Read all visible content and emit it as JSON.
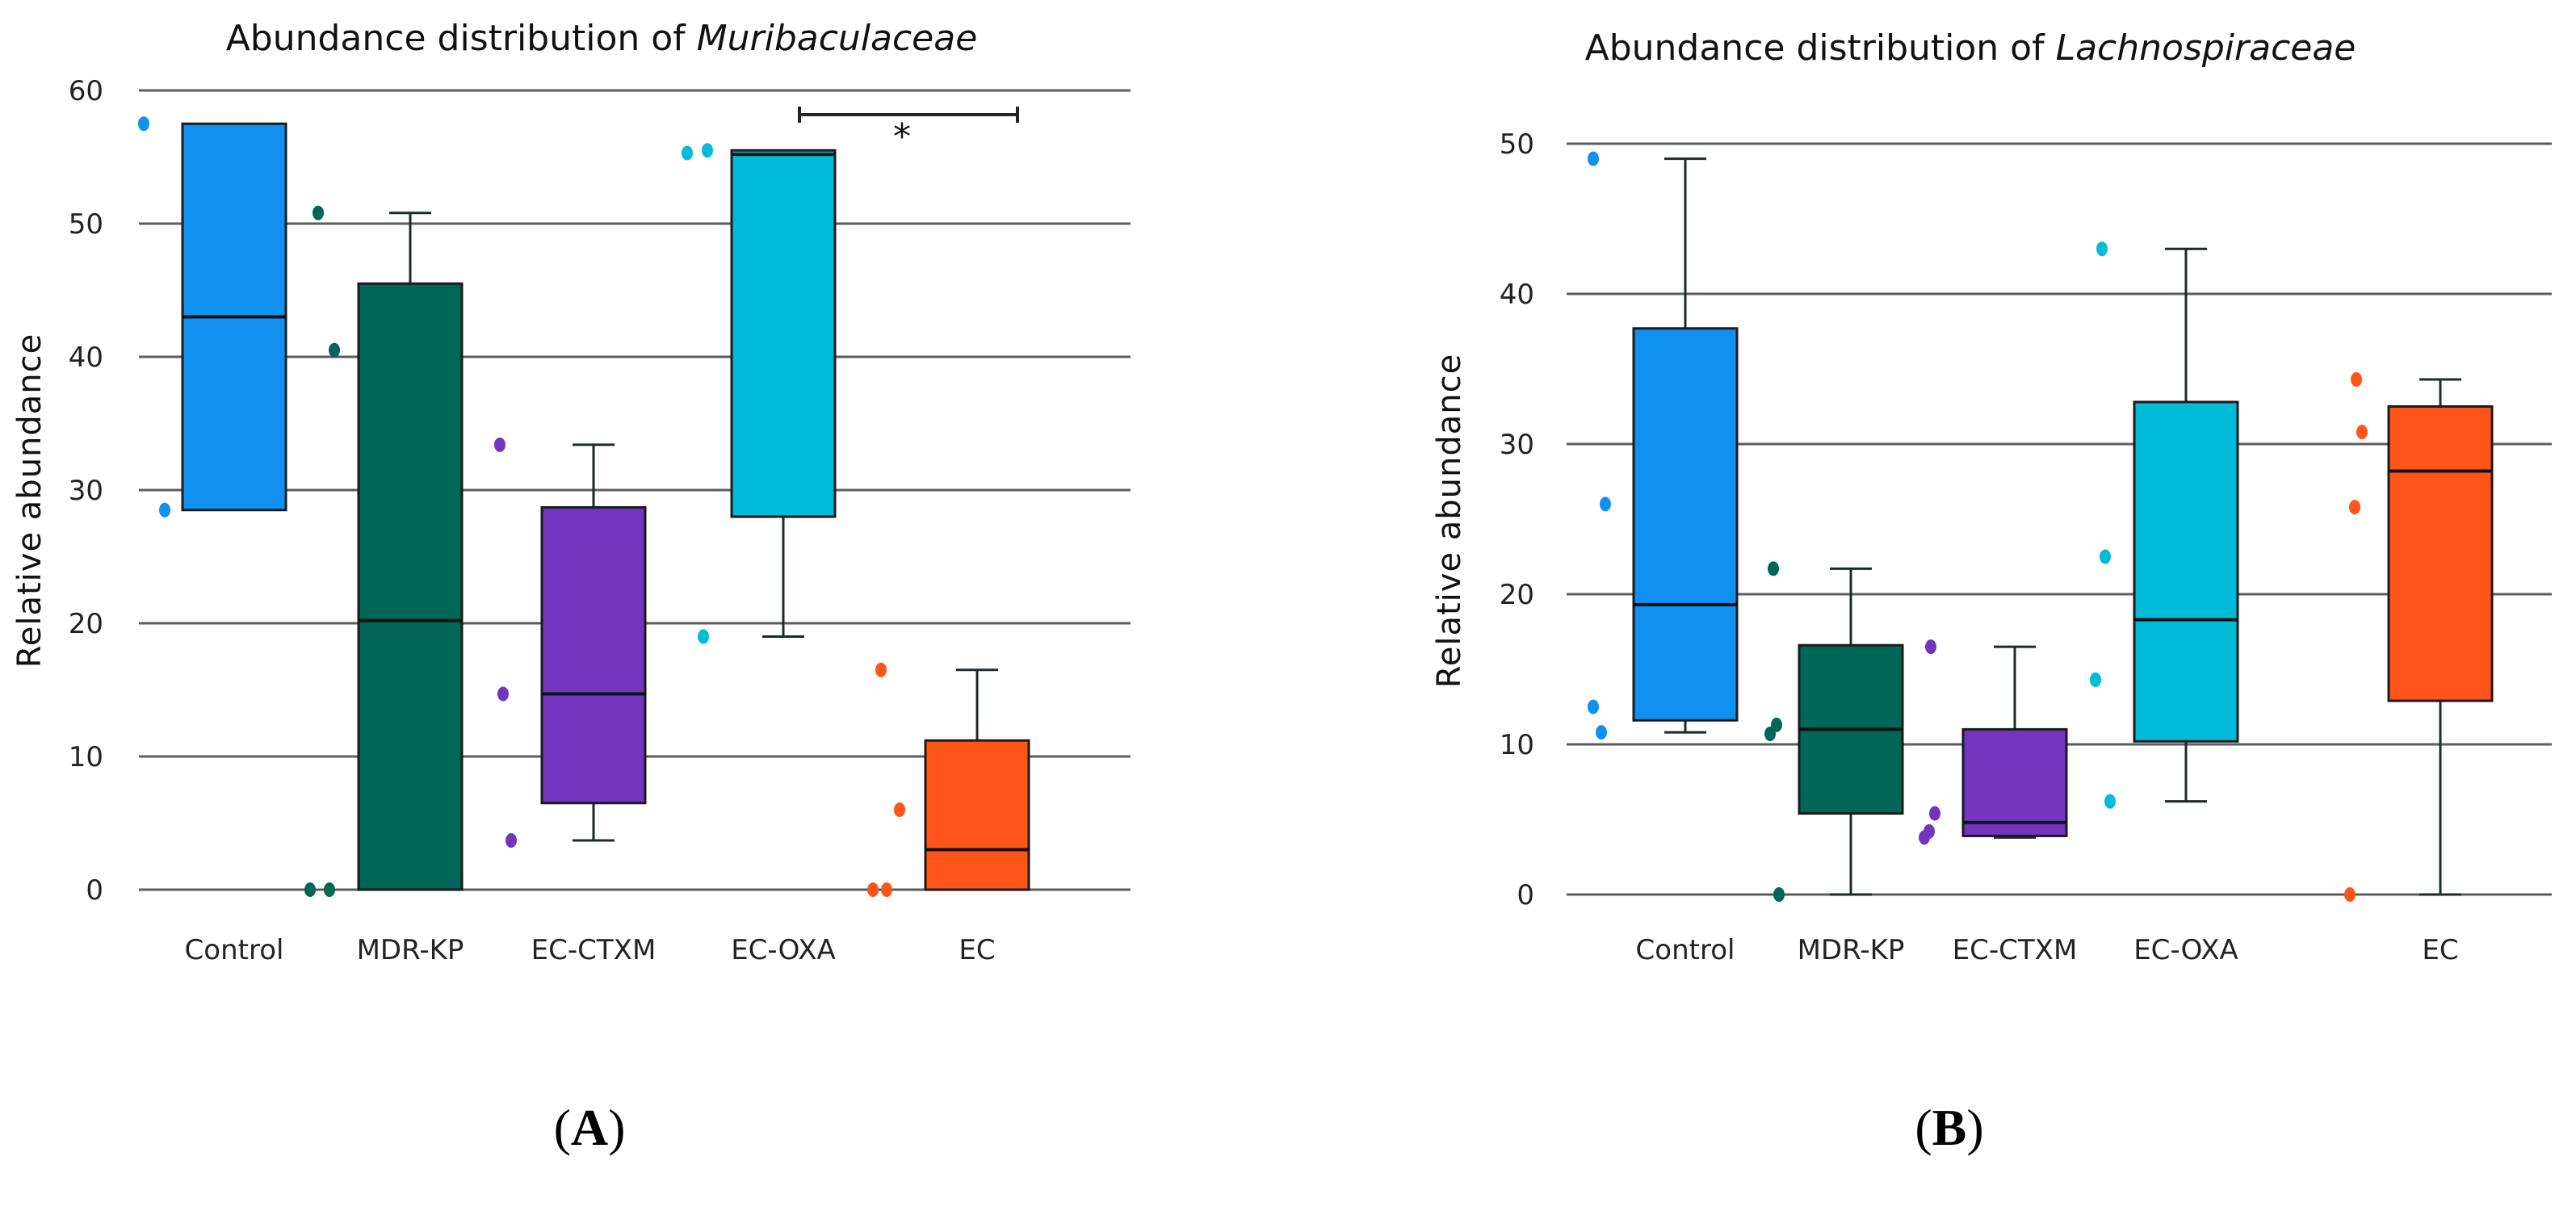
{
  "chart_data": [
    {
      "panel": "A",
      "type": "box",
      "title_prefix": "Abundance distribution of ",
      "title_taxon": "Muribaculaceae",
      "ylabel": "Relative abundance",
      "ylim": [
        0,
        60
      ],
      "yticks": [
        0,
        10,
        20,
        30,
        40,
        50,
        60
      ],
      "grid": true,
      "categories": [
        "Control",
        "MDR-KP",
        "EC-CTXM",
        "EC-OXA",
        "EC"
      ],
      "colors": [
        "#1090f0",
        "#006655",
        "#7335c0",
        "#00bcd8",
        "#ff5518"
      ],
      "boxes": [
        {
          "q1": 28.5,
          "median": 43,
          "q3": 57.5,
          "whisker_low": 28.5,
          "whisker_high": 57.5,
          "points": [
            57.5,
            28.5
          ]
        },
        {
          "q1": 0,
          "median": 20.2,
          "q3": 45.5,
          "whisker_low": 0,
          "whisker_high": 50.8,
          "points": [
            50.8,
            40.5,
            0,
            0
          ]
        },
        {
          "q1": 6.5,
          "median": 14.7,
          "q3": 28.7,
          "whisker_low": 3.7,
          "whisker_high": 33.4,
          "points": [
            33.4,
            14.7,
            3.7
          ]
        },
        {
          "q1": 28,
          "median": 55.2,
          "q3": 55.5,
          "whisker_low": 19,
          "whisker_high": 55.5,
          "points": [
            55.3,
            55.5,
            19
          ]
        },
        {
          "q1": 0,
          "median": 3,
          "q3": 11.2,
          "whisker_low": 0,
          "whisker_high": 16.5,
          "points": [
            16.5,
            6,
            0,
            0
          ]
        }
      ],
      "significance": {
        "from": "EC-OXA",
        "to": "EC",
        "label": "*"
      }
    },
    {
      "panel": "B",
      "type": "box",
      "title_prefix": "Abundance distribution of ",
      "title_taxon": "Lachnospiraceae",
      "ylabel": "Relative abundance",
      "ylim": [
        0,
        50
      ],
      "yticks": [
        0,
        10,
        20,
        30,
        40,
        50
      ],
      "grid": true,
      "categories": [
        "Control",
        "MDR-KP",
        "EC-CTXM",
        "EC-OXA",
        "EC"
      ],
      "colors": [
        "#1090f0",
        "#006655",
        "#7335c0",
        "#00bcd8",
        "#ff5518"
      ],
      "boxes": [
        {
          "q1": 11.6,
          "median": 19.3,
          "q3": 37.7,
          "whisker_low": 10.8,
          "whisker_high": 49,
          "points": [
            49,
            26,
            12.5,
            10.8
          ]
        },
        {
          "q1": 5.4,
          "median": 11,
          "q3": 16.6,
          "whisker_low": 0,
          "whisker_high": 21.7,
          "points": [
            21.7,
            11.3,
            10.7,
            0
          ]
        },
        {
          "q1": 3.9,
          "median": 4.8,
          "q3": 11,
          "whisker_low": 3.8,
          "whisker_high": 16.5,
          "points": [
            16.5,
            5.4,
            4.2,
            3.8
          ]
        },
        {
          "q1": 10.2,
          "median": 18.3,
          "q3": 32.8,
          "whisker_low": 6.2,
          "whisker_high": 43,
          "points": [
            43,
            22.5,
            14.3,
            6.2
          ]
        },
        {
          "q1": 12.9,
          "median": 28.2,
          "q3": 32.5,
          "whisker_low": 0,
          "whisker_high": 34.3,
          "points": [
            34.3,
            30.8,
            25.8,
            0
          ]
        }
      ]
    }
  ],
  "panel_labels": [
    "A",
    "B"
  ]
}
